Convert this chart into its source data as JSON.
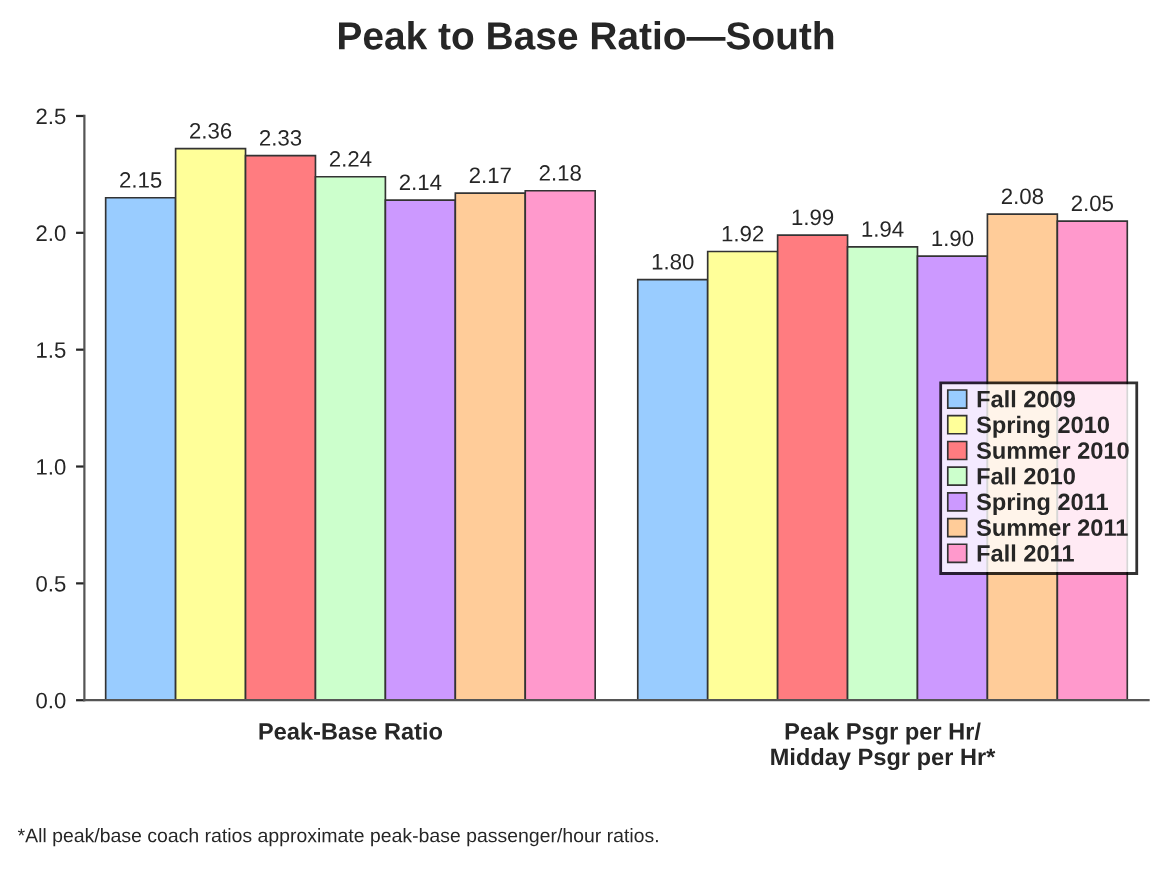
{
  "chart_data": {
    "type": "bar",
    "title": "Peak to Base Ratio—South",
    "categories": [
      "Peak-Base Ratio",
      "Peak Psgr per Hr/\nMidday Psgr per Hr*"
    ],
    "series": [
      {
        "name": "Fall 2009",
        "color": "#99ccff",
        "values": [
          2.15,
          1.8
        ],
        "value_labels": [
          "2.15",
          "1.80"
        ]
      },
      {
        "name": "Spring 2010",
        "color": "#ffff99",
        "values": [
          2.36,
          1.92
        ],
        "value_labels": [
          "2.36",
          "1.92"
        ]
      },
      {
        "name": "Summer 2010",
        "color": "#ff7c80",
        "values": [
          2.33,
          1.99
        ],
        "value_labels": [
          "2.33",
          "1.99"
        ]
      },
      {
        "name": "Fall 2010",
        "color": "#ccffcc",
        "values": [
          2.24,
          1.94
        ],
        "value_labels": [
          "2.24",
          "1.94"
        ]
      },
      {
        "name": "Spring 2011",
        "color": "#cc99ff",
        "values": [
          2.14,
          1.9
        ],
        "value_labels": [
          "2.14",
          "1.90"
        ]
      },
      {
        "name": "Summer 2011",
        "color": "#ffcc99",
        "values": [
          2.17,
          2.08
        ],
        "value_labels": [
          "2.17",
          "2.08"
        ]
      },
      {
        "name": "Fall 2011",
        "color": "#ff99cc",
        "values": [
          2.18,
          2.05
        ],
        "value_labels": [
          "2.18",
          "2.05"
        ]
      }
    ],
    "ylim": [
      0,
      2.5
    ],
    "yticks": [
      {
        "value": 0,
        "label": "0.0"
      },
      {
        "value": 0.5,
        "label": "0.5"
      },
      {
        "value": 1,
        "label": "1.0"
      },
      {
        "value": 1.5,
        "label": "1.5"
      },
      {
        "value": 2,
        "label": "2.0"
      },
      {
        "value": 2.5,
        "label": "2.5"
      }
    ],
    "grid": false,
    "legend": "right",
    "annotations": [
      "*All peak/base coach ratios approximate peak-base passenger/hour ratios."
    ]
  }
}
